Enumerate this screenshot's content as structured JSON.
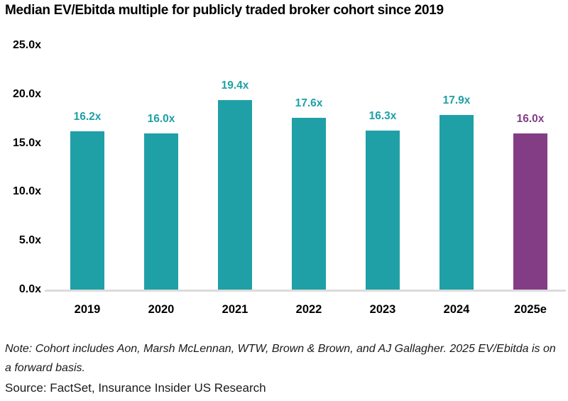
{
  "title": "Median EV/Ebitda multiple for publicly traded broker cohort since 2019",
  "note": "Note: Cohort includes Aon, Marsh McLennan, WTW, Brown & Brown, and AJ Gallagher. 2025 EV/Ebitda is on a forward basis.",
  "source": "Source: FactSet, Insurance Insider US Research",
  "colors": {
    "teal": "#1fa0a6",
    "purple": "#833d85",
    "axis_line": "#dbdbdb",
    "text": "#000000"
  },
  "chart_data": {
    "type": "bar",
    "title": "Median EV/Ebitda multiple for publicly traded broker cohort since 2019",
    "categories": [
      "2019",
      "2020",
      "2021",
      "2022",
      "2023",
      "2024",
      "2025e"
    ],
    "values": [
      16.2,
      16.0,
      19.4,
      17.6,
      16.3,
      17.9,
      16.0
    ],
    "bar_labels": [
      "16.2x",
      "16.0x",
      "19.4x",
      "17.6x",
      "16.3x",
      "17.9x",
      "16.0x"
    ],
    "bar_colors": [
      "#1fa0a6",
      "#1fa0a6",
      "#1fa0a6",
      "#1fa0a6",
      "#1fa0a6",
      "#1fa0a6",
      "#833d85"
    ],
    "xlabel": "",
    "ylabel": "",
    "ylim": [
      0,
      25
    ],
    "yticks": [
      0,
      5,
      10,
      15,
      20,
      25
    ],
    "ytick_labels": [
      "0.0x",
      "5.0x",
      "10.0x",
      "15.0x",
      "20.0x",
      "25.0x"
    ],
    "grid": false,
    "legend": false,
    "annotations": []
  }
}
